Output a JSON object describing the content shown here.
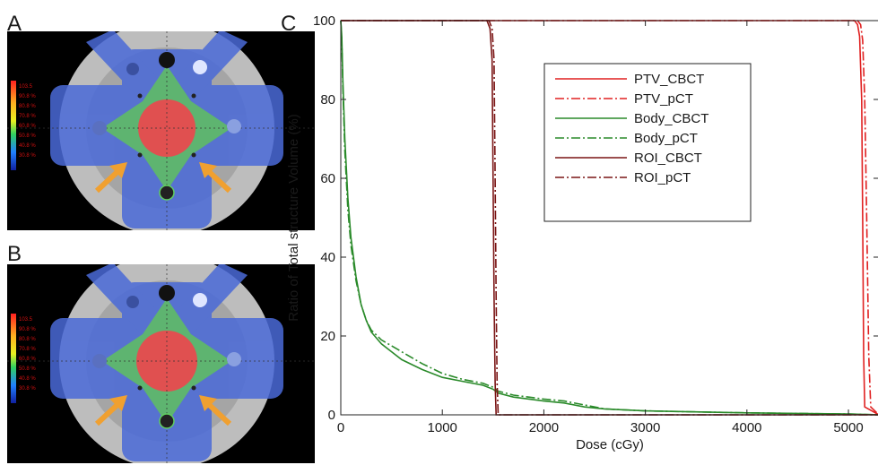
{
  "panels": {
    "A": {
      "letter": "A",
      "colorbar_top": "103.5"
    },
    "B": {
      "letter": "B",
      "colorbar_top": "103.5"
    },
    "colorbar_labels": [
      "90.8 %",
      "80.8 %",
      "70.8 %",
      "60.8 %",
      "50.8 %",
      "40.8 %",
      "30.8 %"
    ],
    "arrow_color": "#f0a030"
  },
  "chart_data": {
    "type": "line",
    "panel_letter": "C",
    "xlabel": "Dose (cGy)",
    "ylabel": "Ratio of Total structure Volume (%)",
    "xlim": [
      0,
      5300
    ],
    "ylim": [
      0,
      100
    ],
    "xticks": [
      0,
      1000,
      2000,
      3000,
      4000,
      5000
    ],
    "yticks": [
      0,
      20,
      40,
      60,
      80,
      100
    ],
    "legend_position": "top-right",
    "series": [
      {
        "name": "PTV_CBCT",
        "color": "#e02020",
        "dash": "solid",
        "x": [
          0,
          5060,
          5090,
          5110,
          5130,
          5140,
          5150,
          5160,
          5300
        ],
        "y": [
          100,
          100,
          99,
          96,
          80,
          50,
          15,
          2,
          0
        ]
      },
      {
        "name": "PTV_pCT",
        "color": "#e02020",
        "dash": "dashdot",
        "x": [
          0,
          5090,
          5120,
          5140,
          5160,
          5180,
          5200,
          5220,
          5300
        ],
        "y": [
          100,
          100,
          99,
          95,
          80,
          50,
          15,
          2,
          0
        ]
      },
      {
        "name": "Body_CBCT",
        "color": "#2a8a2a",
        "dash": "solid",
        "x": [
          0,
          10,
          20,
          40,
          70,
          100,
          150,
          200,
          250,
          300,
          400,
          500,
          600,
          800,
          1000,
          1200,
          1400,
          1500,
          1550,
          1700,
          2000,
          2200,
          2400,
          2600,
          3000,
          4000,
          5000,
          5300
        ],
        "y": [
          100,
          96,
          85,
          70,
          55,
          45,
          35,
          28,
          24,
          21,
          18,
          16,
          14,
          11.5,
          9.5,
          8.5,
          7.5,
          6.5,
          5.5,
          4.5,
          3.5,
          3,
          2,
          1.5,
          1,
          0.5,
          0.2,
          0
        ]
      },
      {
        "name": "Body_pCT",
        "color": "#2a8a2a",
        "dash": "dashdot",
        "x": [
          0,
          10,
          20,
          40,
          70,
          100,
          150,
          200,
          250,
          300,
          400,
          500,
          600,
          800,
          1000,
          1200,
          1400,
          1500,
          1550,
          1700,
          2000,
          2200,
          2400,
          2600,
          3000,
          4000,
          5000,
          5300
        ],
        "y": [
          100,
          95,
          83,
          67,
          52,
          43,
          34,
          28,
          24,
          21.5,
          19,
          17.5,
          16,
          13,
          10.5,
          9,
          8,
          7,
          6,
          5,
          4,
          3.5,
          2.5,
          1.5,
          1,
          0.5,
          0.2,
          0
        ]
      },
      {
        "name": "ROI_CBCT",
        "color": "#7a1515",
        "dash": "solid",
        "x": [
          0,
          1440,
          1470,
          1490,
          1500,
          1510,
          1520,
          1530,
          5300
        ],
        "y": [
          100,
          100,
          98,
          90,
          60,
          30,
          8,
          0,
          0
        ]
      },
      {
        "name": "ROI_pCT",
        "color": "#7a1515",
        "dash": "dashdot",
        "x": [
          0,
          1460,
          1490,
          1510,
          1520,
          1530,
          1540,
          1550,
          5300
        ],
        "y": [
          100,
          100,
          98,
          90,
          60,
          30,
          8,
          0,
          0
        ]
      }
    ]
  }
}
